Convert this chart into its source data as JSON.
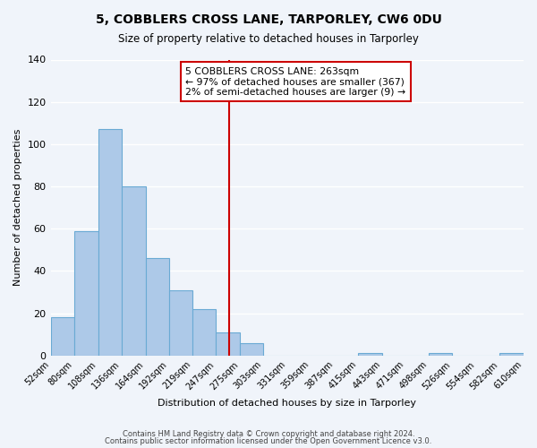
{
  "title": "5, COBBLERS CROSS LANE, TARPORLEY, CW6 0DU",
  "subtitle": "Size of property relative to detached houses in Tarporley",
  "xlabel": "Distribution of detached houses by size in Tarporley",
  "ylabel": "Number of detached properties",
  "bar_edges": [
    52,
    80,
    108,
    136,
    164,
    192,
    219,
    247,
    275,
    303,
    331,
    359,
    387,
    415,
    443,
    471,
    498,
    526,
    554,
    582,
    610
  ],
  "bar_heights": [
    18,
    59,
    107,
    80,
    46,
    31,
    22,
    11,
    6,
    0,
    0,
    0,
    0,
    1,
    0,
    0,
    1,
    0,
    0,
    1
  ],
  "bar_color": "#adc9e8",
  "bar_edge_color": "#6aaad4",
  "vline_x": 263,
  "vline_color": "#cc0000",
  "ylim": [
    0,
    140
  ],
  "annotation_box_text": "5 COBBLERS CROSS LANE: 263sqm\n← 97% of detached houses are smaller (367)\n2% of semi-detached houses are larger (9) →",
  "footer_line1": "Contains HM Land Registry data © Crown copyright and database right 2024.",
  "footer_line2": "Contains public sector information licensed under the Open Government Licence v3.0.",
  "background_color": "#f0f4fa",
  "tick_labels": [
    "52sqm",
    "80sqm",
    "108sqm",
    "136sqm",
    "164sqm",
    "192sqm",
    "219sqm",
    "247sqm",
    "275sqm",
    "303sqm",
    "331sqm",
    "359sqm",
    "387sqm",
    "415sqm",
    "443sqm",
    "471sqm",
    "498sqm",
    "526sqm",
    "554sqm",
    "582sqm",
    "610sqm"
  ],
  "yticks": [
    0,
    20,
    40,
    60,
    80,
    100,
    120,
    140
  ]
}
